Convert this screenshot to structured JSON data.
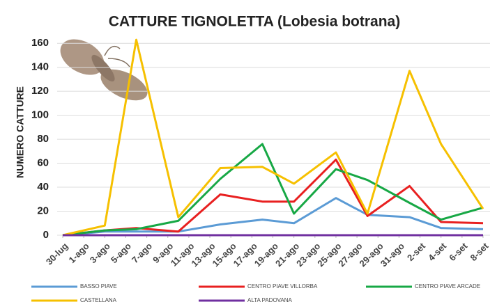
{
  "chart_data": {
    "type": "line",
    "title": "CATTURE TIGNOLETTA (Lobesia botrana)",
    "y_label": "NUMERO CATTURE",
    "x": [
      0,
      4,
      7,
      11,
      15,
      19,
      22,
      26,
      29,
      33,
      36,
      40
    ],
    "xlim": [
      0,
      40
    ],
    "xticks": [
      {
        "value": 0,
        "label": "30-lug"
      },
      {
        "value": 2,
        "label": "1-ago"
      },
      {
        "value": 4,
        "label": "3-ago"
      },
      {
        "value": 6,
        "label": "5-ago"
      },
      {
        "value": 8,
        "label": "7-ago"
      },
      {
        "value": 10,
        "label": "9-ago"
      },
      {
        "value": 12,
        "label": "11-ago"
      },
      {
        "value": 14,
        "label": "13-ago"
      },
      {
        "value": 16,
        "label": "15-ago"
      },
      {
        "value": 18,
        "label": "17-ago"
      },
      {
        "value": 20,
        "label": "19-ago"
      },
      {
        "value": 22,
        "label": "21-ago"
      },
      {
        "value": 24,
        "label": "23-ago"
      },
      {
        "value": 26,
        "label": "25-ago"
      },
      {
        "value": 28,
        "label": "27-ago"
      },
      {
        "value": 30,
        "label": "29-ago"
      },
      {
        "value": 32,
        "label": "31-ago"
      },
      {
        "value": 34,
        "label": "2-set"
      },
      {
        "value": 36,
        "label": "4-set"
      },
      {
        "value": 38,
        "label": "6-set"
      },
      {
        "value": 40,
        "label": "8-set"
      }
    ],
    "ylim": [
      0,
      170
    ],
    "yticks": [
      0,
      20,
      40,
      60,
      80,
      100,
      120,
      140,
      160
    ],
    "grid": true,
    "series": [
      {
        "name": "BASSO PIAVE",
        "color": "#5b9bd5",
        "values": [
          0,
          3,
          3,
          3,
          9,
          13,
          10,
          31,
          17,
          15,
          6,
          5
        ]
      },
      {
        "name": "CENTRO PIAVE VILLORBA",
        "color": "#e82020",
        "values": [
          0,
          4,
          6,
          3,
          34,
          28,
          28,
          63,
          16,
          41,
          11,
          10
        ]
      },
      {
        "name": "CENTRO PIAVE ARCADE",
        "color": "#17a845",
        "values": [
          0,
          4,
          5,
          12,
          47,
          76,
          18,
          55,
          46,
          27,
          13,
          23
        ]
      },
      {
        "name": "CASTELLANA",
        "color": "#f6c000",
        "values": [
          0,
          8,
          163,
          15,
          56,
          57,
          43,
          69,
          18,
          137,
          76,
          22
        ]
      },
      {
        "name": "ALTA PADOVANA",
        "color": "#7030a0",
        "values": [
          0,
          0,
          0,
          0,
          0,
          0,
          0,
          0,
          0,
          0,
          0,
          0
        ]
      }
    ]
  }
}
